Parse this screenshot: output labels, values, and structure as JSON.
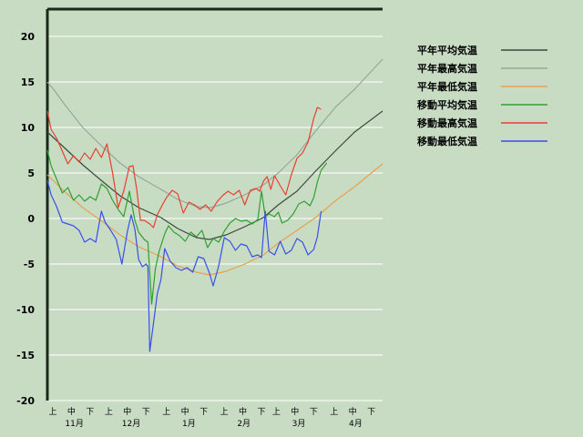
{
  "chart_data": {
    "type": "line",
    "title": "",
    "xlabel": "",
    "ylabel": "",
    "ylim": [
      -20,
      23
    ],
    "yticks": [
      20,
      15,
      10,
      5,
      0,
      -5,
      -10,
      -15,
      -20
    ],
    "grid": true,
    "legend_position": "top-right",
    "x_domain": [
      "11-01",
      "04-30"
    ],
    "months": [
      "11月",
      "12月",
      "1月",
      "2月",
      "3月",
      "4月"
    ],
    "dekads": [
      "上",
      "中",
      "下"
    ],
    "series": [
      {
        "name": "平年平均気温",
        "color": "#3c4a3c",
        "points": [
          [
            "11-01",
            9.5
          ],
          [
            "11-10",
            7.8
          ],
          [
            "11-20",
            5.9
          ],
          [
            "12-01",
            4.0
          ],
          [
            "12-10",
            2.5
          ],
          [
            "12-20",
            1.2
          ],
          [
            "01-01",
            0.1
          ],
          [
            "01-10",
            -1.1
          ],
          [
            "01-20",
            -2.1
          ],
          [
            "01-27",
            -2.3
          ],
          [
            "02-05",
            -1.8
          ],
          [
            "02-15",
            -0.9
          ],
          [
            "02-25",
            0.1
          ],
          [
            "03-05",
            1.5
          ],
          [
            "03-15",
            3.0
          ],
          [
            "03-25",
            5.2
          ],
          [
            "04-05",
            7.5
          ],
          [
            "04-15",
            9.5
          ],
          [
            "04-30",
            11.8
          ]
        ]
      },
      {
        "name": "平年最高気温",
        "color": "#96a896",
        "points": [
          [
            "11-01",
            15.0
          ],
          [
            "11-05",
            14.0
          ],
          [
            "11-10",
            12.6
          ],
          [
            "11-20",
            10.0
          ],
          [
            "12-01",
            7.8
          ],
          [
            "12-10",
            6.1
          ],
          [
            "12-20",
            4.6
          ],
          [
            "01-01",
            3.2
          ],
          [
            "01-10",
            2.1
          ],
          [
            "01-20",
            1.3
          ],
          [
            "01-28",
            1.2
          ],
          [
            "02-05",
            1.7
          ],
          [
            "02-15",
            2.6
          ],
          [
            "02-25",
            3.7
          ],
          [
            "03-05",
            5.0
          ],
          [
            "03-15",
            7.0
          ],
          [
            "03-25",
            9.6
          ],
          [
            "04-05",
            12.3
          ],
          [
            "04-15",
            14.2
          ],
          [
            "04-30",
            17.5
          ]
        ]
      },
      {
        "name": "平年最低気温",
        "color": "#e8a050",
        "points": [
          [
            "11-01",
            4.8
          ],
          [
            "11-10",
            3.0
          ],
          [
            "11-20",
            1.2
          ],
          [
            "12-01",
            -0.4
          ],
          [
            "12-10",
            -1.8
          ],
          [
            "12-20",
            -3.1
          ],
          [
            "01-01",
            -4.2
          ],
          [
            "01-10",
            -5.2
          ],
          [
            "01-20",
            -5.9
          ],
          [
            "01-27",
            -6.2
          ],
          [
            "02-05",
            -5.8
          ],
          [
            "02-15",
            -5.0
          ],
          [
            "02-25",
            -4.0
          ],
          [
            "03-05",
            -2.7
          ],
          [
            "03-15",
            -1.3
          ],
          [
            "03-25",
            0.1
          ],
          [
            "04-05",
            2.0
          ],
          [
            "04-15",
            3.5
          ],
          [
            "04-30",
            6.0
          ]
        ]
      },
      {
        "name": "移動平均気温",
        "color": "#2fa02f",
        "points": [
          [
            "11-01",
            7.5
          ],
          [
            "11-03",
            5.8
          ],
          [
            "11-06",
            4.3
          ],
          [
            "11-09",
            2.8
          ],
          [
            "11-12",
            3.4
          ],
          [
            "11-15",
            2.0
          ],
          [
            "11-18",
            2.6
          ],
          [
            "11-21",
            1.9
          ],
          [
            "11-24",
            2.4
          ],
          [
            "11-27",
            2.0
          ],
          [
            "11-30",
            3.8
          ],
          [
            "12-03",
            3.3
          ],
          [
            "12-06",
            2.0
          ],
          [
            "12-09",
            1.0
          ],
          [
            "12-12",
            0.2
          ],
          [
            "12-15",
            3.0
          ],
          [
            "12-18",
            -0.2
          ],
          [
            "12-20",
            -1.5
          ],
          [
            "12-23",
            -2.3
          ],
          [
            "12-25",
            -2.6
          ],
          [
            "12-27",
            -9.4
          ],
          [
            "12-29",
            -5.5
          ],
          [
            "12-31",
            -3.6
          ],
          [
            "01-03",
            -1.7
          ],
          [
            "01-05",
            -0.8
          ],
          [
            "01-08",
            -1.5
          ],
          [
            "01-11",
            -1.9
          ],
          [
            "01-14",
            -2.5
          ],
          [
            "01-17",
            -1.5
          ],
          [
            "01-20",
            -2.0
          ],
          [
            "01-23",
            -1.3
          ],
          [
            "01-26",
            -3.2
          ],
          [
            "01-29",
            -2.2
          ],
          [
            "02-01",
            -2.6
          ],
          [
            "02-04",
            -1.4
          ],
          [
            "02-07",
            -0.5
          ],
          [
            "02-10",
            0.0
          ],
          [
            "02-13",
            -0.3
          ],
          [
            "02-16",
            -0.2
          ],
          [
            "02-19",
            -0.6
          ],
          [
            "02-22",
            -0.1
          ],
          [
            "02-24",
            3.0
          ],
          [
            "02-26",
            0.2
          ],
          [
            "02-28",
            0.5
          ],
          [
            "03-03",
            0.2
          ],
          [
            "03-05",
            0.7
          ],
          [
            "03-07",
            -0.5
          ],
          [
            "03-10",
            -0.2
          ],
          [
            "03-13",
            0.5
          ],
          [
            "03-16",
            1.6
          ],
          [
            "03-19",
            1.9
          ],
          [
            "03-22",
            1.4
          ],
          [
            "03-24",
            2.3
          ],
          [
            "03-26",
            4.0
          ],
          [
            "03-28",
            5.3
          ],
          [
            "03-31",
            6.1
          ]
        ]
      },
      {
        "name": "移動最高気温",
        "color": "#e84030",
        "points": [
          [
            "11-01",
            11.8
          ],
          [
            "11-03",
            9.8
          ],
          [
            "11-06",
            8.8
          ],
          [
            "11-09",
            7.4
          ],
          [
            "11-12",
            6.0
          ],
          [
            "11-15",
            6.9
          ],
          [
            "11-18",
            6.2
          ],
          [
            "11-21",
            7.2
          ],
          [
            "11-24",
            6.5
          ],
          [
            "11-27",
            7.7
          ],
          [
            "11-30",
            6.7
          ],
          [
            "12-03",
            8.2
          ],
          [
            "12-06",
            5.0
          ],
          [
            "12-09",
            1.2
          ],
          [
            "12-12",
            3.0
          ],
          [
            "12-15",
            5.7
          ],
          [
            "12-17",
            5.8
          ],
          [
            "12-19",
            3.2
          ],
          [
            "12-21",
            -0.2
          ],
          [
            "12-23",
            -0.2
          ],
          [
            "12-26",
            -0.6
          ],
          [
            "12-28",
            -1.0
          ],
          [
            "12-30",
            0.4
          ],
          [
            "01-02",
            1.6
          ],
          [
            "01-04",
            2.3
          ],
          [
            "01-07",
            3.1
          ],
          [
            "01-10",
            2.7
          ],
          [
            "01-13",
            0.6
          ],
          [
            "01-16",
            1.8
          ],
          [
            "01-19",
            1.5
          ],
          [
            "01-22",
            1.0
          ],
          [
            "01-25",
            1.5
          ],
          [
            "01-28",
            0.8
          ],
          [
            "01-31",
            1.8
          ],
          [
            "02-03",
            2.5
          ],
          [
            "02-06",
            3.0
          ],
          [
            "02-09",
            2.6
          ],
          [
            "02-12",
            3.1
          ],
          [
            "02-15",
            1.5
          ],
          [
            "02-18",
            3.1
          ],
          [
            "02-21",
            3.3
          ],
          [
            "02-23",
            3.0
          ],
          [
            "02-25",
            4.1
          ],
          [
            "02-27",
            4.6
          ],
          [
            "03-01",
            3.2
          ],
          [
            "03-03",
            4.7
          ],
          [
            "03-06",
            3.6
          ],
          [
            "03-09",
            2.6
          ],
          [
            "03-12",
            4.8
          ],
          [
            "03-15",
            6.6
          ],
          [
            "03-18",
            7.2
          ],
          [
            "03-21",
            8.4
          ],
          [
            "03-24",
            11.0
          ],
          [
            "03-26",
            12.2
          ],
          [
            "03-28",
            12.0
          ]
        ]
      },
      {
        "name": "移動最低気温",
        "color": "#3850e8",
        "points": [
          [
            "11-01",
            4.2
          ],
          [
            "11-03",
            2.6
          ],
          [
            "11-06",
            1.3
          ],
          [
            "11-09",
            -0.4
          ],
          [
            "11-12",
            -0.6
          ],
          [
            "11-15",
            -0.8
          ],
          [
            "11-18",
            -1.3
          ],
          [
            "11-21",
            -2.6
          ],
          [
            "11-24",
            -2.2
          ],
          [
            "11-27",
            -2.6
          ],
          [
            "11-30",
            0.8
          ],
          [
            "12-02",
            -0.4
          ],
          [
            "12-05",
            -1.3
          ],
          [
            "12-08",
            -2.3
          ],
          [
            "12-11",
            -5.0
          ],
          [
            "12-14",
            -1.4
          ],
          [
            "12-16",
            0.4
          ],
          [
            "12-18",
            -1.2
          ],
          [
            "12-20",
            -4.5
          ],
          [
            "12-22",
            -5.3
          ],
          [
            "12-24",
            -5.0
          ],
          [
            "12-25",
            -5.3
          ],
          [
            "12-26",
            -14.6
          ],
          [
            "12-28",
            -11.5
          ],
          [
            "12-30",
            -8.3
          ],
          [
            "01-01",
            -6.7
          ],
          [
            "01-03",
            -3.3
          ],
          [
            "01-06",
            -4.7
          ],
          [
            "01-09",
            -5.4
          ],
          [
            "01-12",
            -5.7
          ],
          [
            "01-15",
            -5.4
          ],
          [
            "01-18",
            -5.9
          ],
          [
            "01-21",
            -4.2
          ],
          [
            "01-24",
            -4.4
          ],
          [
            "01-27",
            -6.0
          ],
          [
            "01-29",
            -7.4
          ],
          [
            "02-01",
            -5.2
          ],
          [
            "02-04",
            -2.1
          ],
          [
            "02-07",
            -2.5
          ],
          [
            "02-10",
            -3.5
          ],
          [
            "02-13",
            -2.8
          ],
          [
            "02-16",
            -3.0
          ],
          [
            "02-19",
            -4.2
          ],
          [
            "02-22",
            -4.0
          ],
          [
            "02-24",
            -4.3
          ],
          [
            "02-26",
            0.8
          ],
          [
            "02-28",
            -3.6
          ],
          [
            "03-03",
            -4.0
          ],
          [
            "03-06",
            -2.5
          ],
          [
            "03-09",
            -3.9
          ],
          [
            "03-12",
            -3.5
          ],
          [
            "03-15",
            -2.2
          ],
          [
            "03-18",
            -2.6
          ],
          [
            "03-21",
            -4.0
          ],
          [
            "03-24",
            -3.4
          ],
          [
            "03-26",
            -2.0
          ],
          [
            "03-28",
            0.8
          ]
        ]
      }
    ]
  }
}
